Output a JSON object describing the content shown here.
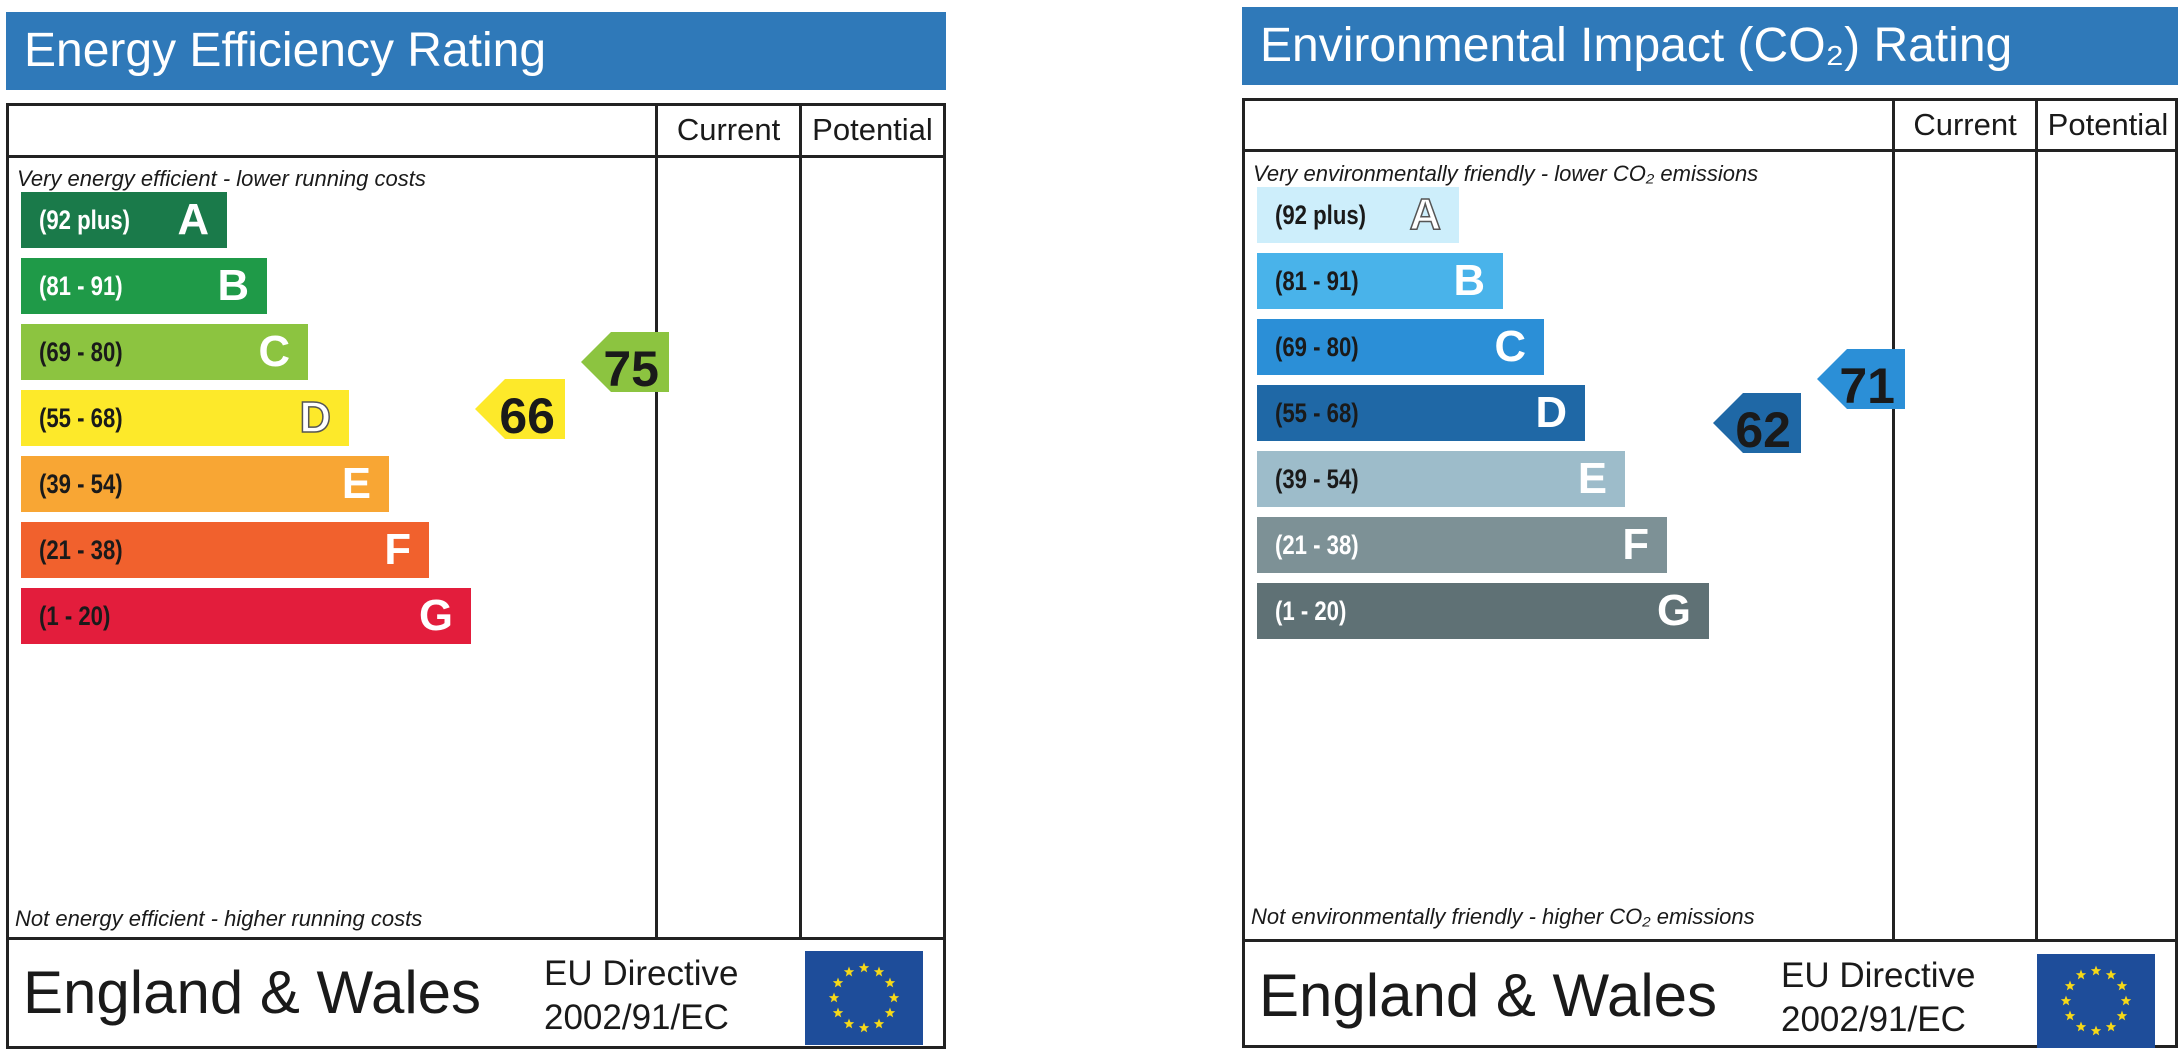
{
  "chart_data": [
    {
      "type": "bar",
      "title": "Energy Efficiency Rating",
      "columns": [
        "Current",
        "Potential"
      ],
      "top_note": "Very energy efficient - lower running costs",
      "bottom_note": "Not energy efficient - higher running costs",
      "categories": [
        "A",
        "B",
        "C",
        "D",
        "E",
        "F",
        "G"
      ],
      "bands": [
        {
          "letter": "A",
          "range": "(92 plus)",
          "color": "#1a7a4a",
          "text_color": "#ffffff",
          "letter_color": "#ffffff"
        },
        {
          "letter": "B",
          "range": "(81 - 91)",
          "color": "#1f9a48",
          "text_color": "#ffffff",
          "letter_color": "#ffffff"
        },
        {
          "letter": "C",
          "range": "(69 - 80)",
          "color": "#8cc440",
          "text_color": "#1a1a1a",
          "letter_color": "#ffffff"
        },
        {
          "letter": "D",
          "range": "(55 - 68)",
          "color": "#fde92a",
          "text_color": "#1a1a1a",
          "letter_color": "#ffffff"
        },
        {
          "letter": "E",
          "range": "(39 - 54)",
          "color": "#f8a634",
          "text_color": "#1a1a1a",
          "letter_color": "#ffffff"
        },
        {
          "letter": "F",
          "range": "(21 - 38)",
          "color": "#f1612d",
          "text_color": "#1a1a1a",
          "letter_color": "#ffffff"
        },
        {
          "letter": "G",
          "range": "(1 - 20)",
          "color": "#e31d3c",
          "text_color": "#1a1a1a",
          "letter_color": "#ffffff"
        }
      ],
      "current": {
        "value": 66,
        "label": "66",
        "band": "D",
        "color": "#fde92a"
      },
      "potential": {
        "value": 75,
        "label": "75",
        "band": "C",
        "color": "#8cc440"
      },
      "footer": {
        "region": "England & Wales",
        "directive_line1": "EU Directive",
        "directive_line2": "2002/91/EC"
      }
    },
    {
      "type": "bar",
      "title": "Environmental Impact (CO₂) Rating",
      "columns": [
        "Current",
        "Potential"
      ],
      "top_note": "Very environmentally friendly - lower CO₂ emissions",
      "bottom_note": "Not environmentally friendly - higher CO₂ emissions",
      "categories": [
        "A",
        "B",
        "C",
        "D",
        "E",
        "F",
        "G"
      ],
      "bands": [
        {
          "letter": "A",
          "range": "(92 plus)",
          "color": "#cdeefb",
          "text_color": "#1a1a1a",
          "letter_color": "#ffffff"
        },
        {
          "letter": "B",
          "range": "(81 - 91)",
          "color": "#49b3ea",
          "text_color": "#1a1a1a",
          "letter_color": "#ffffff"
        },
        {
          "letter": "C",
          "range": "(69 - 80)",
          "color": "#2b8fd7",
          "text_color": "#1a1a1a",
          "letter_color": "#ffffff"
        },
        {
          "letter": "D",
          "range": "(55 - 68)",
          "color": "#1f68a6",
          "text_color": "#1a1a1a",
          "letter_color": "#ffffff"
        },
        {
          "letter": "E",
          "range": "(39 - 54)",
          "color": "#9dbcca",
          "text_color": "#1a1a1a",
          "letter_color": "#ffffff"
        },
        {
          "letter": "F",
          "range": "(21 - 38)",
          "color": "#7d9196",
          "text_color": "#ffffff",
          "letter_color": "#ffffff"
        },
        {
          "letter": "G",
          "range": "(1 - 20)",
          "color": "#5f7175",
          "text_color": "#ffffff",
          "letter_color": "#ffffff"
        }
      ],
      "current": {
        "value": 62,
        "label": "62",
        "band": "D",
        "color": "#1f68a6"
      },
      "potential": {
        "value": 71,
        "label": "71",
        "band": "C",
        "color": "#2b8fd7"
      },
      "footer": {
        "region": "England & Wales",
        "directive_line1": "EU Directive",
        "directive_line2": "2002/91/EC"
      }
    }
  ],
  "icons": {
    "eu_flag": "eu-flag-icon"
  }
}
